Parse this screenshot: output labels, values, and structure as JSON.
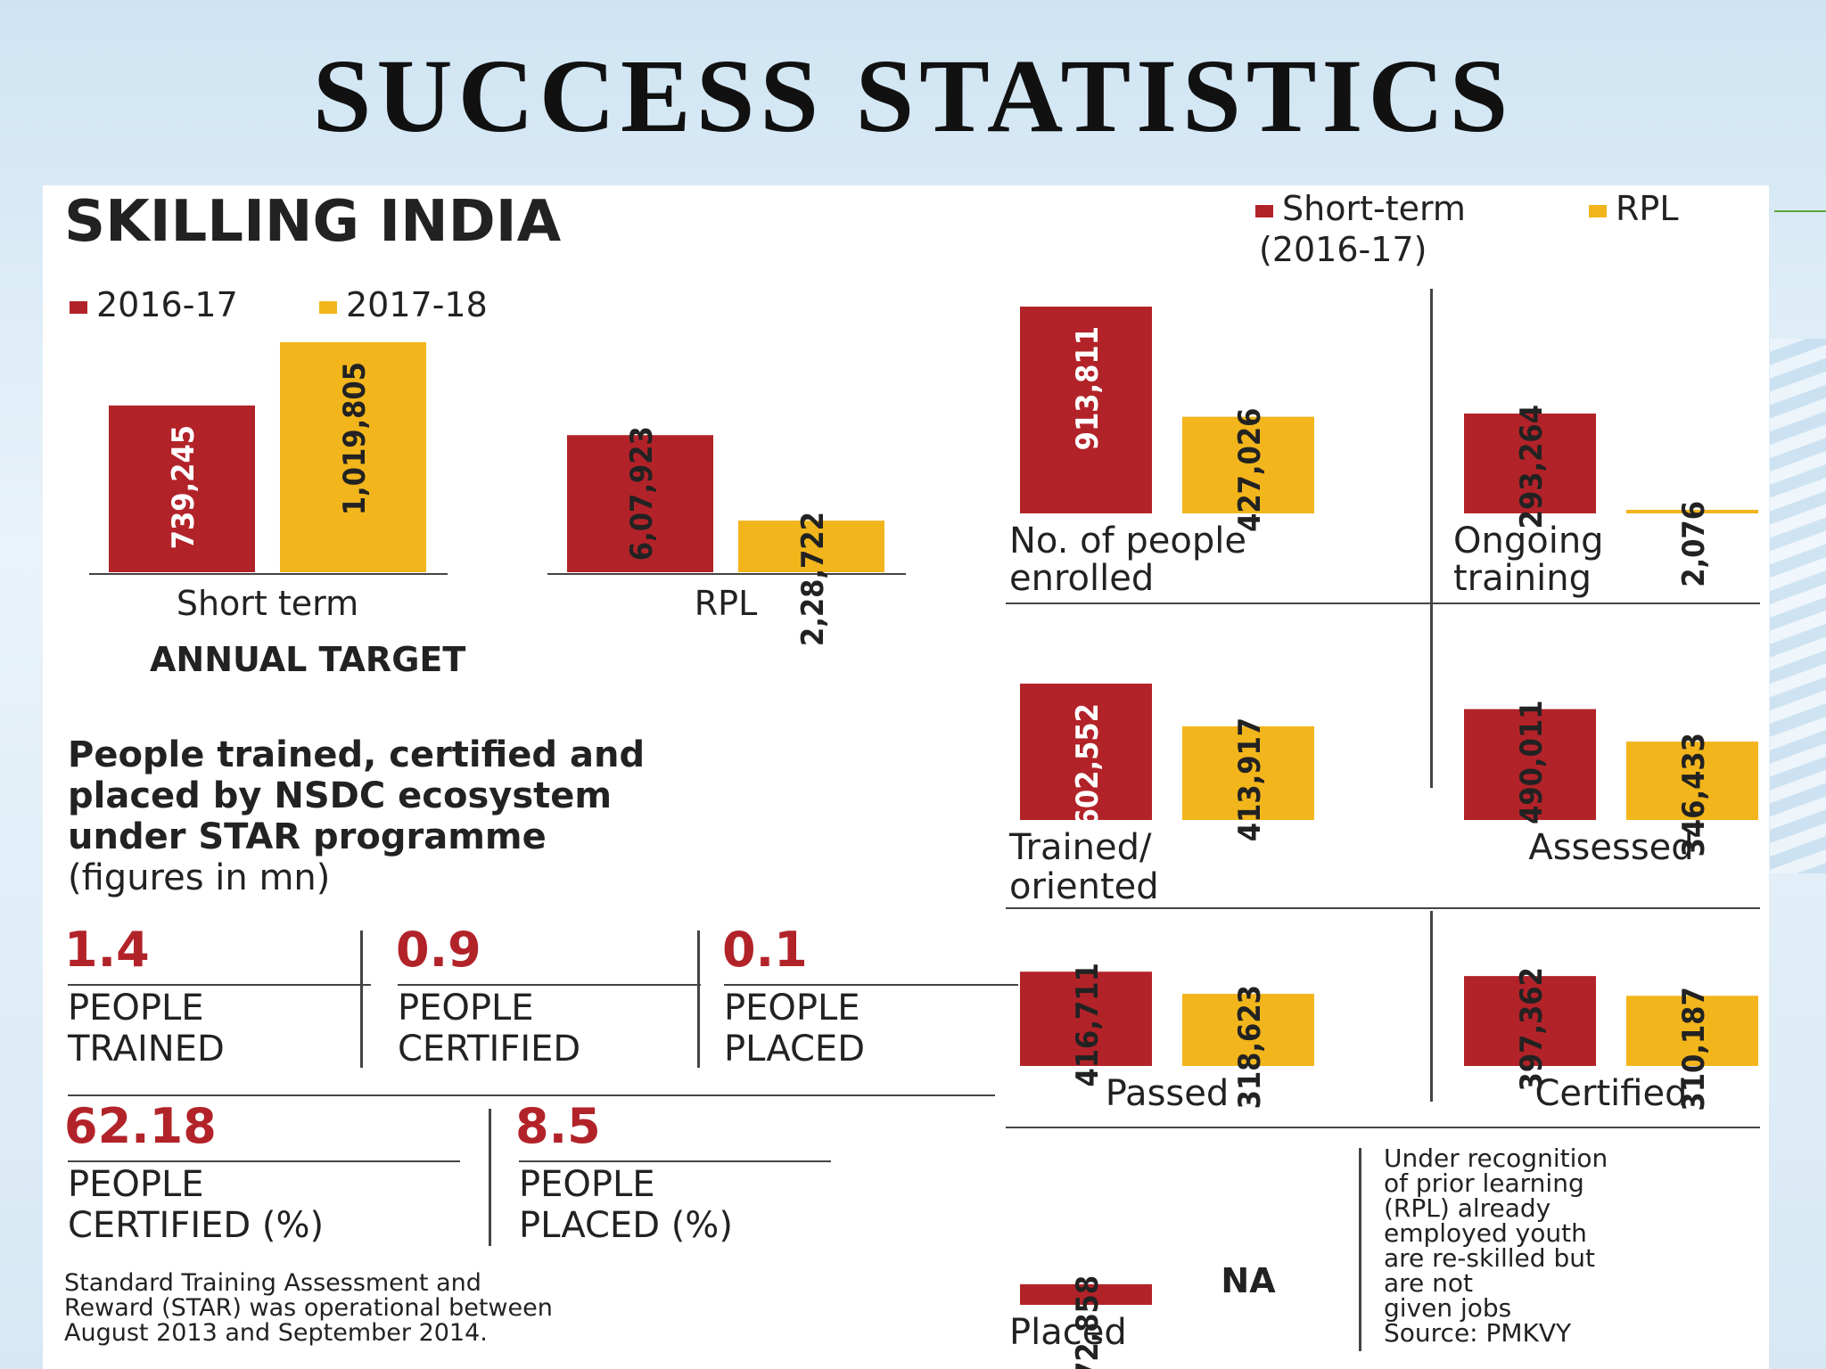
{
  "slide_title": "SUCCESS  STATISTICS",
  "infographic": {
    "title": "SKILLING INDIA",
    "left_legend": [
      "2016-17",
      "2017-18"
    ],
    "right_legend": {
      "short_term": "Short-term",
      "rpl": "RPL",
      "period": "(2016-17)"
    },
    "annual_target_label": "ANNUAL TARGET",
    "star_heading": [
      "People trained, certified and",
      "placed by NSDC ecosystem",
      "under STAR programme"
    ],
    "star_units": "(figures in mn)",
    "stats_row1": [
      {
        "value": "1.4",
        "label1": "PEOPLE",
        "label2": "TRAINED"
      },
      {
        "value": "0.9",
        "label1": "PEOPLE",
        "label2": "CERTIFIED"
      },
      {
        "value": "0.1",
        "label1": "PEOPLE",
        "label2": "PLACED"
      }
    ],
    "stats_row2": [
      {
        "value": "62.18",
        "label1": "PEOPLE",
        "label2": "CERTIFIED (%)"
      },
      {
        "value": "8.5",
        "label1": "PEOPLE",
        "label2": "PLACED (%)"
      }
    ],
    "footnote": [
      "Standard Training Assessment and",
      "Reward (STAR) was operational between",
      "August 2013 and September 2014."
    ],
    "rpl_note": [
      "Under recognition",
      "of prior learning",
      "(RPL) already",
      "employed youth",
      "are re-skilled but",
      "are not",
      "given jobs",
      "Source: PMKVY"
    ],
    "na_label": "NA"
  },
  "colors": {
    "short_term": "#b22329",
    "rpl": "#f2b51c"
  },
  "chart_data": [
    {
      "type": "bar",
      "title": "ANNUAL TARGET",
      "categories": [
        "Short term",
        "RPL"
      ],
      "series": [
        {
          "name": "2016-17",
          "values": [
            739245,
            607923
          ],
          "labels": [
            "739,245",
            "6,07,923"
          ]
        },
        {
          "name": "2017-18",
          "values": [
            1019805,
            228722
          ],
          "labels": [
            "1,019,805",
            "2,28,722"
          ]
        }
      ]
    },
    {
      "type": "bar",
      "title": "",
      "categories": [
        [
          "No. of people",
          "enrolled"
        ],
        [
          "Ongoing",
          "training"
        ],
        [
          "Trained/",
          "oriented"
        ],
        [
          "Assessed"
        ],
        [
          "Passed"
        ],
        [
          "Certified"
        ],
        [
          "Placed"
        ]
      ],
      "series": [
        {
          "name": "Short-term",
          "values": [
            913811,
            293264,
            602552,
            490011,
            416711,
            397362,
            72858
          ],
          "labels": [
            "913,811",
            "293,264",
            "602,552",
            "490,011",
            "416,711",
            "397,362",
            "72,858"
          ]
        },
        {
          "name": "RPL",
          "values": [
            427026,
            2076,
            413917,
            346433,
            318623,
            310187,
            null
          ],
          "labels": [
            "427,026",
            "2,076",
            "413,917",
            "346,433",
            "318,623",
            "310,187",
            "NA"
          ]
        }
      ]
    }
  ]
}
